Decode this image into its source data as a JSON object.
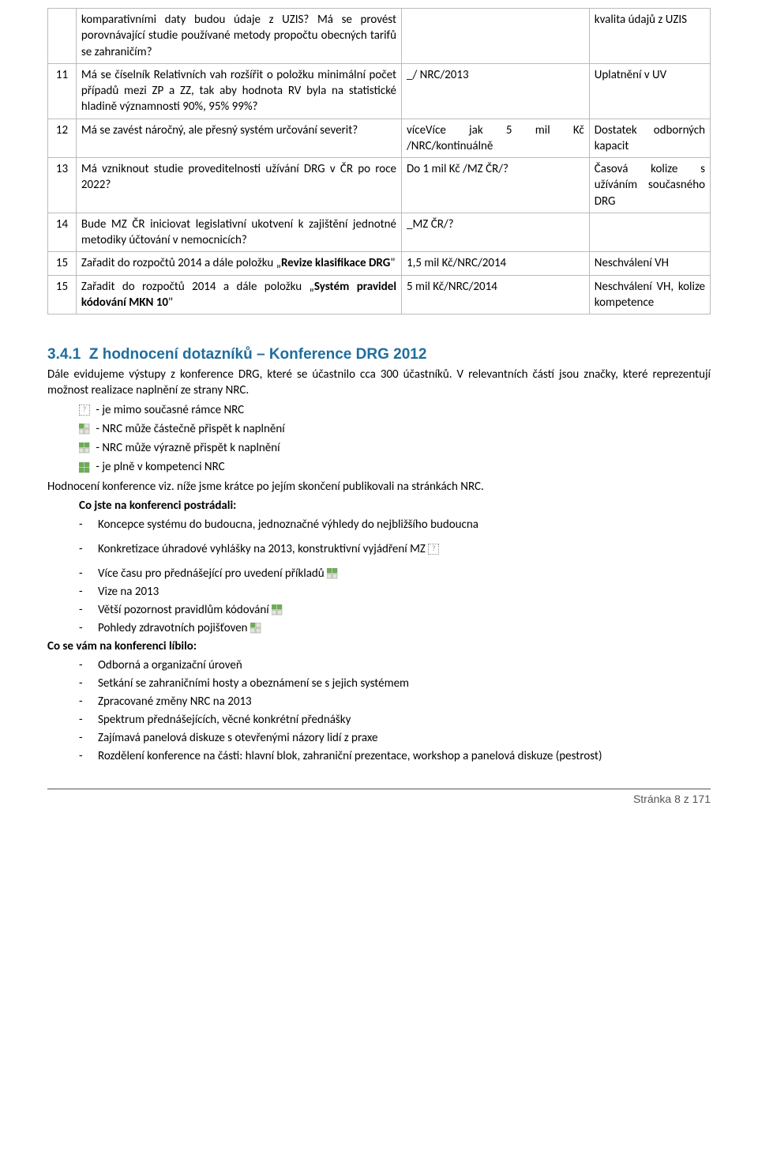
{
  "table": {
    "rows": [
      {
        "num": "",
        "c1_html": "komparativními daty budou údaje z UZIS? Má se provést porovnávající studie používané metody propočtu obecných tarifů se zahraničím?",
        "c2": "",
        "c3": "kvalita údajů z UZIS"
      },
      {
        "num": "11",
        "c1_html": "Má se číselník Relativních vah rozšířit o položku minimální počet případů mezi ZP a ZZ, tak aby hodnota RV byla na statistické hladině významnosti 90%, 95% 99%?",
        "c2": "_/ NRC/2013",
        "c3": "Uplatnění v UV"
      },
      {
        "num": "12",
        "c1_html": "Má se zavést náročný, ale přesný systém určování severit?",
        "c2": "víceVíce jak 5 mil Kč /NRC/kontinuálně",
        "c3": "Dostatek odborných kapacit"
      },
      {
        "num": "13",
        "c1_html": "Má vzniknout studie proveditelnosti užívání DRG v ČR po roce 2022?",
        "c2": "Do 1 mil Kč /MZ ČR/?",
        "c3": "Časová kolize s užíváním současného DRG"
      },
      {
        "num": "14",
        "c1_html": "Bude MZ ČR iniciovat legislativní ukotvení k zajištění jednotné metodiky účtování v nemocnicích?",
        "c2": "_MZ ČR/?",
        "c3": ""
      },
      {
        "num": "15",
        "c1b": "Zařadit do rozpočtů 2014 a dále položku „",
        "c1q": "Revize klasifikace DRG",
        "c1a": "\"",
        "c2": "1,5 mil Kč/NRC/2014",
        "c3": "Neschválení VH"
      },
      {
        "num": "15",
        "c1b": "Zařadit do rozpočtů 2014 a dále položku „",
        "c1q": "Systém pravidel kódování MKN 10",
        "c1a": "\"",
        "c2": "5 mil Kč/NRC/2014",
        "c3": "Neschválení VH, kolize kompetence"
      }
    ]
  },
  "section": {
    "heading_num": "3.4.1",
    "heading": "Z hodnocení dotazníků – Konference DRG 2012",
    "intro": "Dále evidujeme výstupy z konference DRG, které se účastnilo cca 300 účastníků. V relevantních částí jsou značky, které reprezentují možnost realizace naplnění ze strany NRC.",
    "legend": [
      {
        "icon": "q",
        "text": "- je mimo současné rámce NRC"
      },
      {
        "icon": "p25",
        "text": "- NRC může částečně přispět k naplnění"
      },
      {
        "icon": "p50",
        "text": "- NRC může výrazně přispět k naplnění"
      },
      {
        "icon": "p100",
        "text": "- je plně v kompetenci NRC"
      }
    ],
    "hodnoceni_line": "Hodnocení konference viz. níže jsme krátce po jejím skončení publikovali na stránkách NRC.",
    "missed_heading": "Co jste na konferenci postrádali:",
    "missed": [
      {
        "text": "Koncepce systému do budoucna, jednoznačné výhledy do nejbližšího budoucna",
        "icon": null,
        "wide": true
      },
      {
        "text": "Konkretizace úhradové vyhlášky na 2013, konstruktivní vyjádření MZ",
        "icon": "q",
        "wide": true
      },
      {
        "text": "Více času pro přednášející pro uvedení příkladů",
        "icon": "p50",
        "wide": false
      },
      {
        "text": "Vize na 2013",
        "icon": null,
        "wide": false
      },
      {
        "text": "Větší pozornost pravidlům kódování",
        "icon": "p50",
        "wide": false
      },
      {
        "text": "Pohledy zdravotních pojišťoven",
        "icon": "p25",
        "wide": false
      }
    ],
    "liked_heading": "Co se vám na konferenci líbilo:",
    "liked": [
      "Odborná a organizační úroveň",
      "Setkání se zahraničními hosty a obeznámení se s jejich systémem",
      "Zpracované změny NRC na 2013",
      "Spektrum přednášejících, věcné konkrétní přednášky",
      "Zajímavá panelová diskuze s otevřenými názory lidí z praxe",
      "Rozdělení konference na části: hlavní blok, zahraniční prezentace, workshop a panelová diskuze (pestrost)"
    ]
  },
  "footer": "Stránka 8 z 171",
  "icons": {
    "progress_full": "#68b24a",
    "progress_empty": "#dfe7d6",
    "progress_border": "#888"
  }
}
